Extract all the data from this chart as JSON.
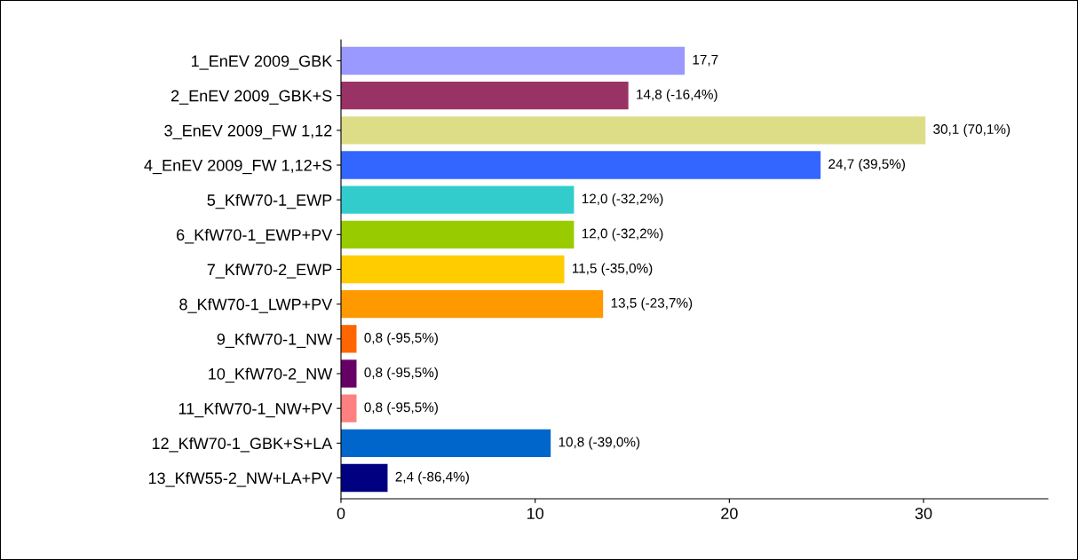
{
  "chart_data": {
    "type": "bar",
    "orientation": "horizontal",
    "categories": [
      "1_EnEV 2009_GBK",
      "2_EnEV 2009_GBK+S",
      "3_EnEV 2009_FW 1,12",
      "4_EnEV 2009_FW 1,12+S",
      "5_KfW70-1_EWP",
      "6_KfW70-1_EWP+PV",
      "7_KfW70-2_EWP",
      "8_KfW70-1_LWP+PV",
      "9_KfW70-1_NW",
      "10_KfW70-2_NW",
      "11_KfW70-1_NW+PV",
      "12_KfW70-1_GBK+S+LA",
      "13_KfW55-2_NW+LA+PV"
    ],
    "values": [
      17.7,
      14.8,
      30.1,
      24.7,
      12.0,
      12.0,
      11.5,
      13.5,
      0.8,
      0.8,
      0.8,
      10.8,
      2.4
    ],
    "value_labels": [
      "17,7",
      "14,8 (-16,4%)",
      "30,1 (70,1%)",
      "24,7 (39,5%)",
      "12,0 (-32,2%)",
      "12,0 (-32,2%)",
      "11,5 (-35,0%)",
      "13,5 (-23,7%)",
      "0,8 (-95,5%)",
      "0,8 (-95,5%)",
      "0,8 (-95,5%)",
      "10,8 (-39,0%)",
      "2,4 (-86,4%)"
    ],
    "colors": [
      "#9999ff",
      "#993366",
      "#dddd88",
      "#3366ff",
      "#33cccc",
      "#99cc00",
      "#ffcc00",
      "#ff9900",
      "#ff6600",
      "#660066",
      "#ff8080",
      "#0066cc",
      "#000080"
    ],
    "xlim": [
      0,
      36.4
    ],
    "xticks": [
      0,
      10,
      20,
      30
    ],
    "grid": false,
    "legend": false
  }
}
